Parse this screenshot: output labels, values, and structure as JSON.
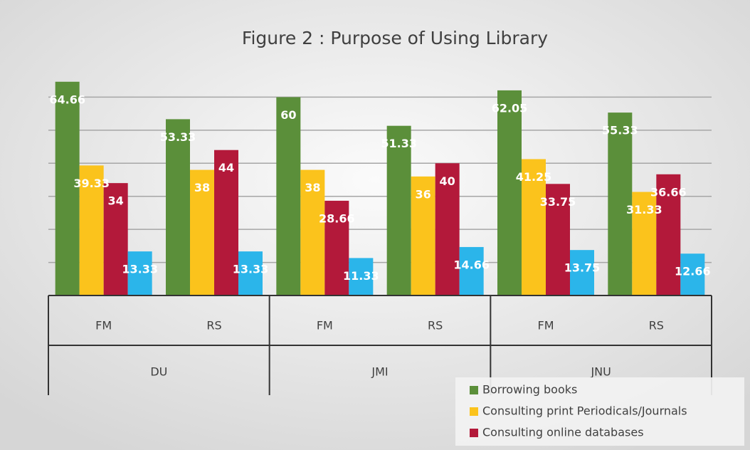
{
  "chart_data": {
    "type": "bar",
    "title": "Figure 2 : Purpose of Using Library",
    "categories": [
      "FM",
      "RS",
      "FM",
      "RS",
      "FM",
      "RS"
    ],
    "groups": [
      "DU",
      "JMI",
      "JNU"
    ],
    "series": [
      {
        "name": "Borrowing books",
        "color": "#5b8f3a",
        "values": [
          64.66,
          53.33,
          60,
          51.33,
          62.05,
          55.33
        ]
      },
      {
        "name": "Consulting print Periodicals/Journals",
        "color": "#fbc31c",
        "values": [
          39.33,
          38,
          38,
          36,
          41.25,
          31.33
        ]
      },
      {
        "name": "Consulting online databases",
        "color": "#b3193a",
        "values": [
          34,
          44,
          28.66,
          40,
          33.75,
          36.66
        ]
      },
      {
        "color": "#2bb5ea",
        "values": [
          13.33,
          13.33,
          11.33,
          14.66,
          13.75,
          12.66
        ]
      }
    ],
    "ylim": [
      0,
      70
    ],
    "yticks": [
      10,
      20,
      30,
      40,
      50,
      60
    ],
    "grid": true
  }
}
